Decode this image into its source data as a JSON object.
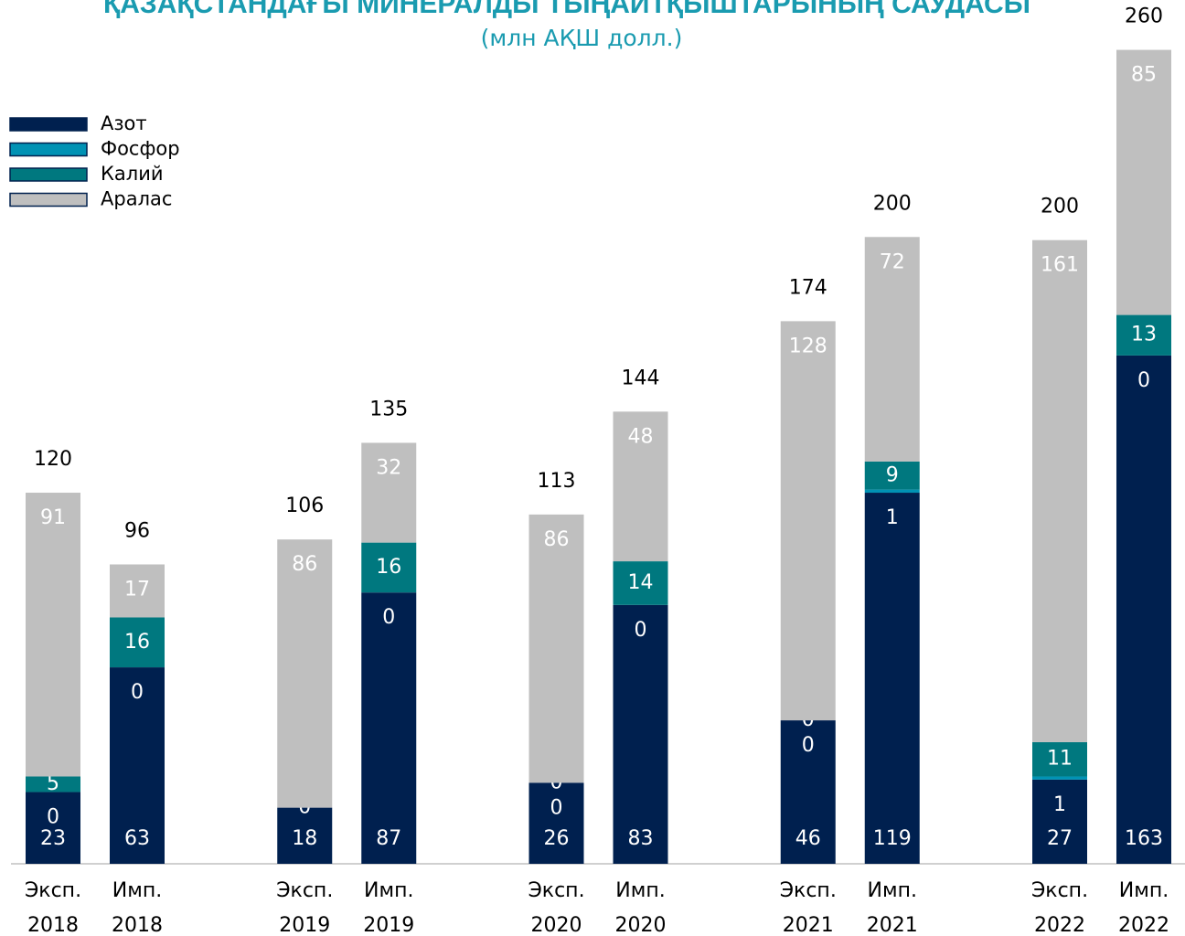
{
  "chart_data": {
    "type": "stacked_bar",
    "title": "ҚАЗАҚСТАНДАҒЫ МИНЕРАЛДЫ ТЫҢАЙТҚЫШТАРЫНЫҢ САУДАСЫ",
    "subtitle": "(млн АҚШ долл.)",
    "categories": [
      "Эксп. 2018",
      "Имп. 2018",
      "Эксп. 2019",
      "Имп. 2019",
      "Эксп. 2020",
      "Имп. 2020",
      "Эксп. 2021",
      "Имп. 2021",
      "Эксп. 2022",
      "Имп. 2022"
    ],
    "series": [
      {
        "name": "Азот",
        "color": "#00204f",
        "values": [
          23,
          63,
          18,
          87,
          26,
          83,
          46,
          119,
          27,
          163
        ]
      },
      {
        "name": "Фосфор",
        "color": "#0092b4",
        "values": [
          0,
          0,
          null,
          0,
          0,
          0,
          0,
          1,
          1,
          0
        ]
      },
      {
        "name": "Калий",
        "color": "#00787f",
        "values": [
          5,
          16,
          0,
          16,
          0,
          14,
          0,
          9,
          11,
          13
        ]
      },
      {
        "name": "Аралас",
        "color": "#bfbfbf",
        "values": [
          91,
          17,
          86,
          32,
          86,
          48,
          128,
          72,
          161,
          85
        ]
      }
    ],
    "totals": [
      120,
      96,
      106,
      135,
      113,
      144,
      174,
      200,
      200,
      260
    ],
    "ylim": [
      0,
      260
    ],
    "legend": "top-left"
  }
}
